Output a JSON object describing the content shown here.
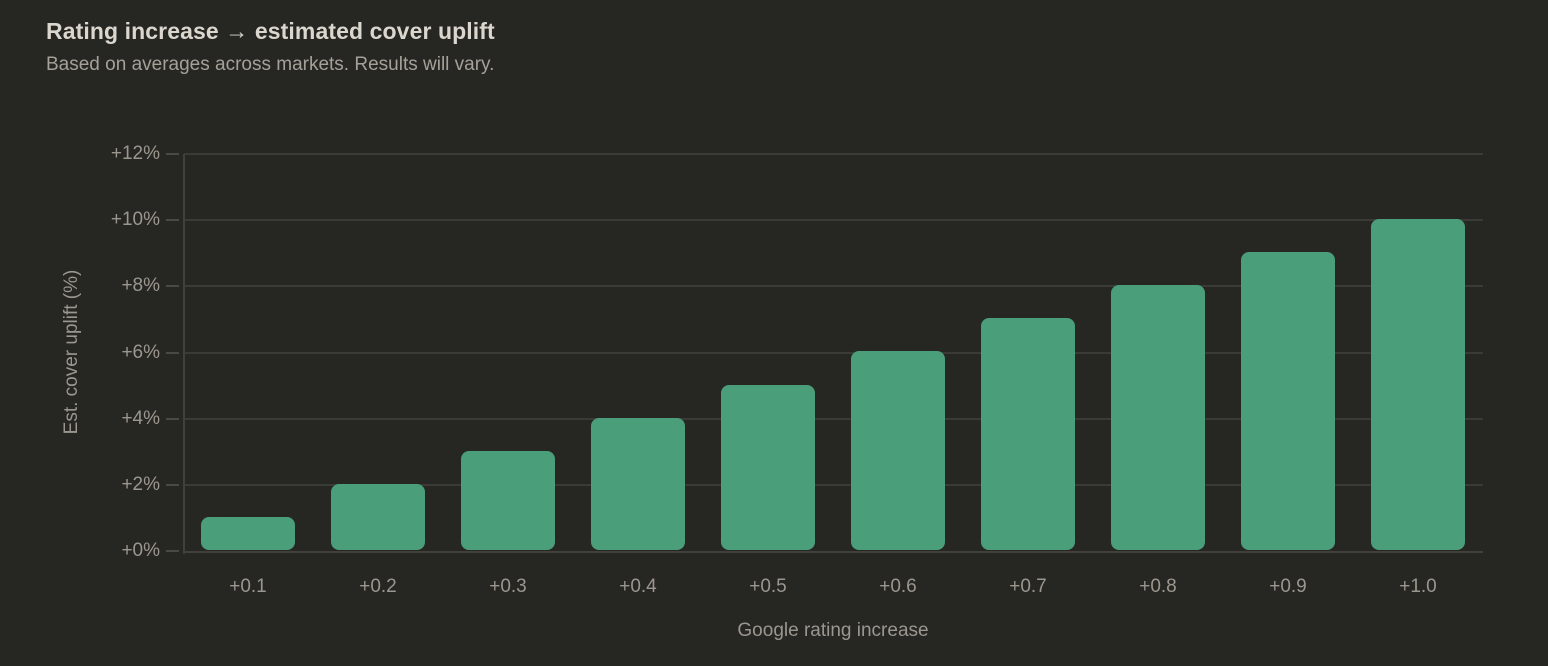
{
  "header": {
    "title": "Rating increase → estimated cover uplift",
    "subtitle": "Based on averages across markets. Results will vary."
  },
  "chart_data": {
    "type": "bar",
    "title": "Rating increase → estimated cover uplift",
    "subtitle": "Based on averages across markets. Results will vary.",
    "categories": [
      "+0.1",
      "+0.2",
      "+0.3",
      "+0.4",
      "+0.5",
      "+0.6",
      "+0.7",
      "+0.8",
      "+0.9",
      "+1.0"
    ],
    "values": [
      1,
      2,
      3,
      4,
      5,
      6,
      7,
      8,
      9,
      10
    ],
    "xlabel": "Google rating increase",
    "ylabel": "Est. cover uplift (%)",
    "y_tick_values": [
      0,
      2,
      4,
      6,
      8,
      10,
      12
    ],
    "y_tick_labels": [
      "+0%",
      "+2%",
      "+4%",
      "+6%",
      "+8%",
      "+10%",
      "+12%"
    ],
    "ylim": [
      0,
      12
    ],
    "grid": "horizontal",
    "legend": "none"
  },
  "colors": {
    "background": "#262623",
    "bar": "#4b9e7a",
    "gridline": "#3a3a36",
    "axis_line": "#41403b",
    "tick_mark": "#4a4945",
    "title_text": "#dbd7ce",
    "subtitle_text": "#a5a199",
    "label_text": "#9b978f"
  }
}
